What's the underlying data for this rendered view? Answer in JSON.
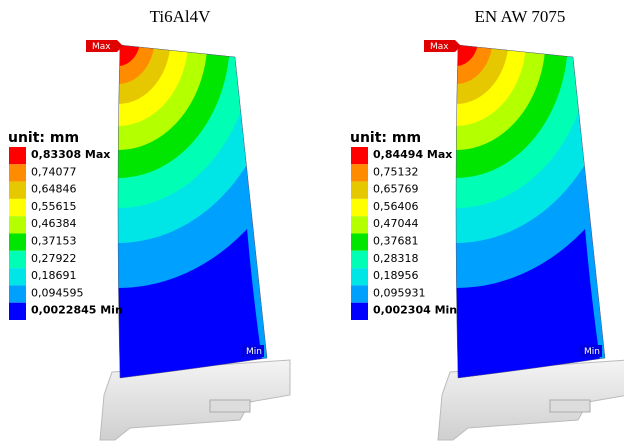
{
  "panels": [
    {
      "title": "Ti6Al4V",
      "max_tag": "Max",
      "min_tag": "Min",
      "legend": {
        "unit": "unit: mm",
        "labels": [
          "0,83308 Max",
          "0,74077",
          "0,64846",
          "0,55615",
          "0,46384",
          "0,37153",
          "0,27922",
          "0,18691",
          "0,094595",
          "0,0022845 Min"
        ]
      }
    },
    {
      "title": "EN AW 7075",
      "max_tag": "Max",
      "min_tag": "Min",
      "legend": {
        "unit": "unit: mm",
        "labels": [
          "0,84494 Max",
          "0,75132",
          "0,65769",
          "0,56406",
          "0,47044",
          "0,37681",
          "0,28318",
          "0,18956",
          "0,095931",
          "0,002304 Min"
        ]
      }
    }
  ]
}
